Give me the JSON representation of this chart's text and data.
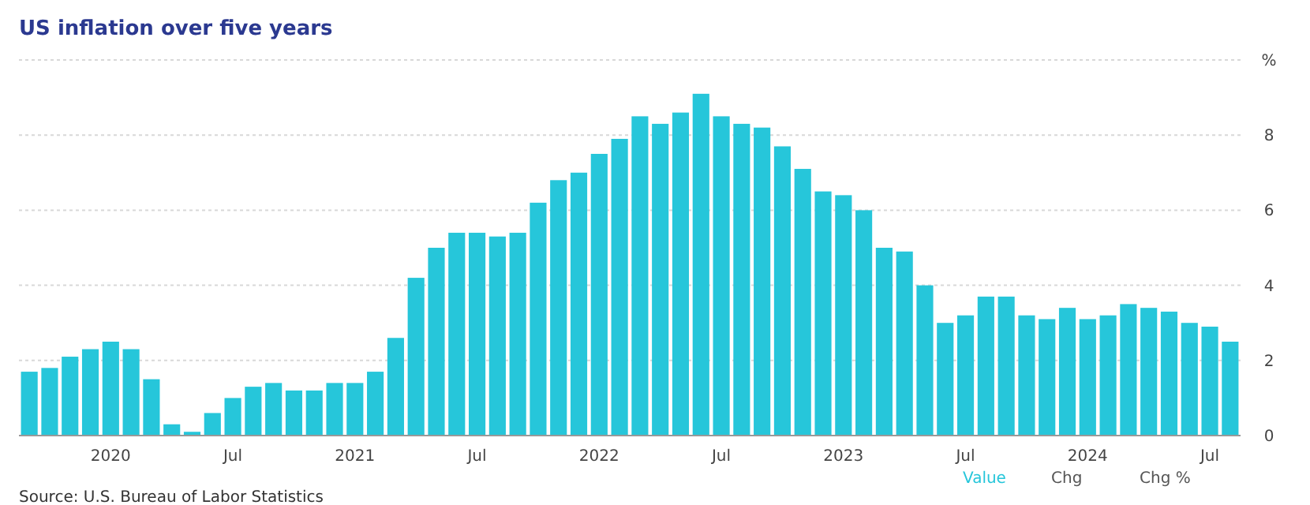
{
  "chart_data": {
    "type": "bar",
    "title": "US inflation over five years",
    "categories": [
      null,
      null,
      null,
      null,
      "2020",
      null,
      null,
      null,
      null,
      null,
      "Jul",
      null,
      null,
      null,
      null,
      null,
      "2021",
      null,
      null,
      null,
      null,
      null,
      "Jul",
      null,
      null,
      null,
      null,
      null,
      "2022",
      null,
      null,
      null,
      null,
      null,
      "Jul",
      null,
      null,
      null,
      null,
      null,
      "2023",
      null,
      null,
      null,
      null,
      null,
      "Jul",
      null,
      null,
      null,
      null,
      null,
      "2024",
      null,
      null,
      null,
      null,
      null,
      "Jul",
      null
    ],
    "values": [
      1.7,
      1.8,
      2.1,
      2.3,
      2.5,
      2.3,
      1.5,
      0.3,
      0.1,
      0.6,
      1.0,
      1.3,
      1.4,
      1.2,
      1.2,
      1.4,
      1.4,
      1.7,
      2.6,
      4.2,
      5.0,
      5.4,
      5.4,
      5.3,
      5.4,
      6.2,
      6.8,
      7.0,
      7.5,
      7.9,
      8.5,
      8.3,
      8.6,
      9.1,
      8.5,
      8.3,
      8.2,
      7.7,
      7.1,
      6.5,
      6.4,
      6.0,
      5.0,
      4.9,
      4.0,
      3.0,
      3.2,
      3.7,
      3.7,
      3.2,
      3.1,
      3.4,
      3.1,
      3.2,
      3.5,
      3.4,
      3.3,
      3.0,
      2.9,
      2.5
    ],
    "color": "#26c6da",
    "ylim": [
      0,
      10
    ],
    "yticks": [
      0,
      2,
      4,
      6,
      8,
      {
        "value": 10,
        "label": "%"
      }
    ],
    "grid": "y",
    "annotations": [
      "Source: U.S. Bureau of Labor Statistics",
      "Value",
      "Chg",
      "Chg %"
    ]
  }
}
